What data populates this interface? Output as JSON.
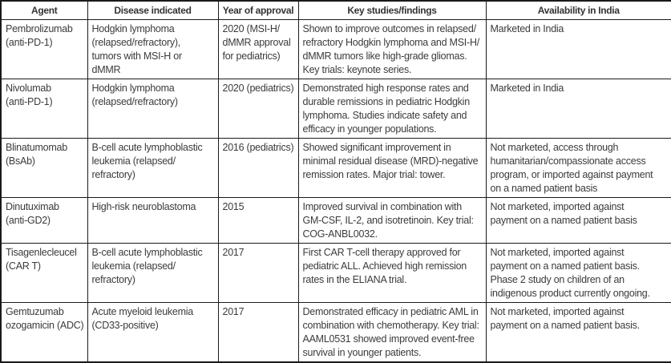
{
  "colors": {
    "border": "#1a1a1a",
    "text": "#3b3b3b",
    "background": "#ffffff"
  },
  "table": {
    "columns": [
      "Agent",
      "Disease indicated",
      "Year of approval",
      "Key studies/findings",
      "Availability in India"
    ],
    "rows": [
      {
        "cells": [
          "Pembrolizumab\n(anti-PD-1)",
          "Hodgkin lymphoma\n(relapsed/refractory),\ntumors with MSI-H or\ndMMR",
          "2020 (MSI-H/\ndMMR approval\nfor pediatrics)",
          "Shown to improve outcomes in relapsed/\nrefractory Hodgkin lymphoma and MSI-H/\ndMMR tumors like high-grade gliomas.\nKey trials: keynote series.",
          "Marketed in India"
        ]
      },
      {
        "cells": [
          "Nivolumab\n(anti-PD-1)",
          "Hodgkin lymphoma\n(relapsed/refractory)",
          "2020 (pediatrics)",
          "Demonstrated high response rates and\ndurable remissions in pediatric Hodgkin\nlymphoma. Studies indicate safety and\nefficacy in younger populations.",
          "Marketed in India"
        ]
      },
      {
        "cells": [
          "Blinatumomab\n(BsAb)",
          "B-cell acute lymphoblastic\nleukemia (relapsed/\nrefractory)",
          "2016 (pediatrics)",
          "Showed significant improvement in\nminimal residual disease (MRD)-negative\nremission rates. Major trial: tower.",
          "Not marketed, access through\nhumanitarian/compassionate access\nprogram, or imported against payment\non a named patient basis"
        ]
      },
      {
        "cells": [
          "Dinutuximab\n(anti-GD2)",
          "High-risk neuroblastoma",
          "2015",
          "Improved survival in combination with\nGM-CSF, IL-2, and isotretinoin. Key trial:\nCOG-ANBL0032.",
          "Not marketed, imported against\npayment on a named patient basis"
        ]
      },
      {
        "cells": [
          "Tisagenlecleucel\n(CAR T)",
          "B-cell acute lymphoblastic\nleukemia (relapsed/\nrefractory)",
          "2017",
          "First CAR T-cell therapy approved for\npediatric ALL. Achieved high remission\nrates in the ELIANA trial.",
          "Not marketed, imported against\npayment on a named patient basis.\nPhase 2 study on children of an\nindigenous product currently ongoing."
        ]
      },
      {
        "cells": [
          "Gemtuzumab\nozogamicin (ADC)",
          "Acute myeloid leukemia\n(CD33-positive)",
          "2017",
          "Demonstrated efficacy in pediatric AML in\ncombination with chemotherapy. Key trial:\nAAML0531 showed improved event-free\nsurvival in younger patients.",
          "Not marketed, imported against\npayment on a named patient basis."
        ]
      }
    ]
  }
}
